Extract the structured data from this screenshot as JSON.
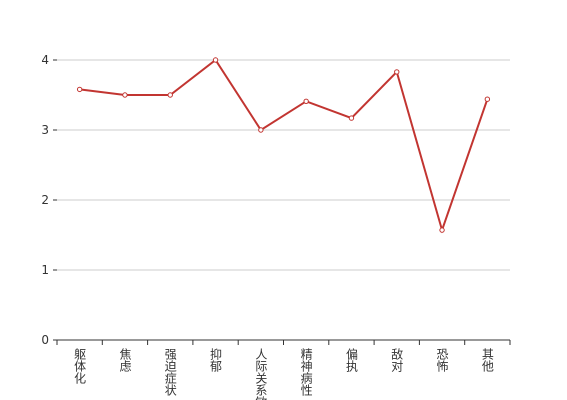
{
  "chart_data": {
    "type": "line",
    "categories": [
      "躯体化",
      "焦虑",
      "强迫症状",
      "抑郁",
      "人际关系敏感",
      "精神病性",
      "偏执",
      "敌对",
      "恐怖",
      "其他"
    ],
    "series": [
      {
        "color": "#c23531",
        "values": [
          3.58,
          3.5,
          3.5,
          4,
          3.0,
          3.41,
          3.17,
          3.83,
          1.57,
          3.44
        ]
      }
    ],
    "ylim": [
      0,
      4
    ],
    "yticks": [
      0,
      1,
      2,
      3,
      4
    ],
    "grid": true
  }
}
